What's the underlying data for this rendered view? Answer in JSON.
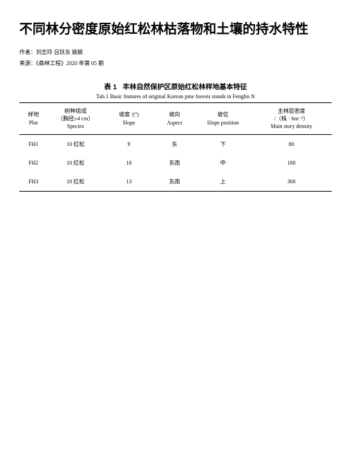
{
  "title": "不同林分密度原始红松林枯落物和土壤的持水特性",
  "authors_label": "作者：",
  "authors": "刘志玲 吕跃东 姚颖",
  "source_label": "来源：",
  "source": "《森林工程》2020 年第 05 期",
  "table": {
    "caption_cn_prefix": "表 1",
    "caption_cn": "丰林自然保护区原始红松林样地基本特征",
    "caption_en": "Tab.1 Basic features of original Korean pine forests stands in Fenglin N",
    "columns": [
      {
        "cn": "样地",
        "en": "Plot"
      },
      {
        "cn": "树种组成\n（胸径≥4 cm）",
        "en": "Species"
      },
      {
        "cn": "坡度 /(°)",
        "en": "Slope"
      },
      {
        "cn": "坡向",
        "en": "Aspect"
      },
      {
        "cn": "坡位",
        "en": "Slope position"
      },
      {
        "cn": "主林层密度\n/（株 · hm⁻²）",
        "en": "Main story density"
      }
    ],
    "rows": [
      [
        "FH1",
        "10 红松",
        "9",
        "东",
        "下",
        "80"
      ],
      [
        "FH2",
        "10 红松",
        "10",
        "东南",
        "中",
        "180"
      ],
      [
        "FH3",
        "10 红松",
        "13",
        "东南",
        "上",
        "360"
      ]
    ]
  }
}
